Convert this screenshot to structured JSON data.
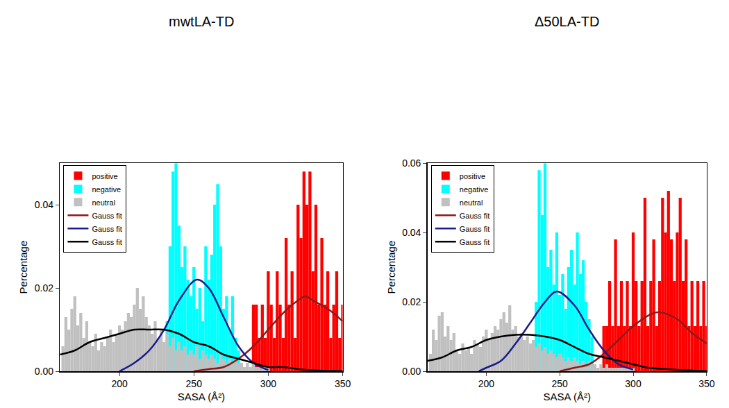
{
  "chart_data": [
    {
      "type": "bar",
      "title": "mwtLA-TD",
      "x_label": "SASA (Å²)",
      "y_label": "Percentage",
      "xlim": [
        160,
        350
      ],
      "xticks": [
        200,
        250,
        300,
        350
      ],
      "ylim": [
        0,
        0.05
      ],
      "yticks": [
        {
          "value": 0,
          "label": "0.00"
        },
        {
          "value": 0.02,
          "label": "0.02"
        },
        {
          "value": 0.04,
          "label": "0.04"
        }
      ],
      "legend": "upper left",
      "series": [
        {
          "name": "positive",
          "color": "#ff0000",
          "type": "bar",
          "x": [
            290,
            292,
            294,
            296,
            298,
            300,
            302,
            304,
            306,
            308,
            310,
            312,
            314,
            316,
            318,
            320,
            322,
            324,
            326,
            328,
            330,
            332,
            334,
            336,
            338,
            340,
            342,
            344,
            346,
            348,
            350
          ],
          "values": [
            0.016,
            0.016,
            0.008,
            0.016,
            0.008,
            0.024,
            0.016,
            0.008,
            0.024,
            0.016,
            0.008,
            0.032,
            0.016,
            0.024,
            0.008,
            0.04,
            0.032,
            0.048,
            0.04,
            0.048,
            0.024,
            0.04,
            0.016,
            0.032,
            0.016,
            0.024,
            0.008,
            0.016,
            0.024,
            0.008,
            0.016
          ]
        },
        {
          "name": "negative",
          "color": "#00ffff",
          "type": "bar",
          "x": [
            232,
            234,
            236,
            238,
            240,
            242,
            244,
            246,
            248,
            250,
            252,
            254,
            256,
            258,
            260,
            262,
            264,
            266,
            268,
            270,
            272,
            274,
            276,
            278,
            280
          ],
          "values": [
            0.012,
            0.03,
            0.048,
            0.05,
            0.035,
            0.025,
            0.03,
            0.022,
            0.018,
            0.025,
            0.015,
            0.02,
            0.012,
            0.03,
            0.022,
            0.028,
            0.04,
            0.045,
            0.03,
            0.015,
            0.018,
            0.01,
            0.018,
            0.008,
            0.005
          ]
        },
        {
          "name": "neutral",
          "color": "#c0c0c0",
          "type": "bar",
          "x": [
            162,
            164,
            166,
            168,
            170,
            172,
            174,
            176,
            178,
            180,
            182,
            184,
            186,
            188,
            190,
            192,
            194,
            196,
            198,
            200,
            202,
            204,
            206,
            208,
            210,
            212,
            214,
            216,
            218,
            220,
            222,
            224,
            226,
            228,
            230,
            232,
            234,
            236,
            238,
            240,
            242,
            244,
            246,
            248,
            250,
            252,
            254,
            256,
            258,
            260,
            262,
            264,
            266,
            268,
            270,
            272,
            274,
            276,
            278,
            280,
            282,
            284,
            286,
            288,
            290,
            292,
            294,
            296,
            298,
            300
          ],
          "values": [
            0.006,
            0.013,
            0.01,
            0.015,
            0.018,
            0.011,
            0.014,
            0.008,
            0.012,
            0.007,
            0.006,
            0.009,
            0.005,
            0.007,
            0.006,
            0.008,
            0.01,
            0.007,
            0.009,
            0.011,
            0.01,
            0.012,
            0.014,
            0.013,
            0.016,
            0.02,
            0.015,
            0.018,
            0.013,
            0.011,
            0.009,
            0.012,
            0.008,
            0.01,
            0.007,
            0.009,
            0.006,
            0.008,
            0.005,
            0.007,
            0.005,
            0.006,
            0.004,
            0.005,
            0.004,
            0.006,
            0.003,
            0.005,
            0.004,
            0.003,
            0.004,
            0.003,
            0.002,
            0.004,
            0.003,
            0.002,
            0.003,
            0.002,
            0.003,
            0.002,
            0.002,
            0.001,
            0.002,
            0.001,
            0.002,
            0.001,
            0.001,
            0.001,
            0.001,
            0.001
          ]
        },
        {
          "name": "Gauss fit",
          "color": "#8b1a1a",
          "type": "line",
          "x": [
            250,
            260,
            270,
            280,
            290,
            300,
            310,
            320,
            325,
            330,
            340,
            350
          ],
          "values": [
            0,
            0.0005,
            0.001,
            0.003,
            0.006,
            0.01,
            0.014,
            0.017,
            0.018,
            0.017,
            0.015,
            0.012
          ]
        },
        {
          "name": "Gauss fit",
          "color": "#1a1a8c",
          "type": "line",
          "x": [
            200,
            210,
            220,
            230,
            240,
            252,
            260,
            270,
            280,
            290,
            300
          ],
          "values": [
            0,
            0.002,
            0.005,
            0.01,
            0.017,
            0.022,
            0.02,
            0.013,
            0.006,
            0.002,
            0.0003
          ]
        },
        {
          "name": "Gauss fit",
          "color": "#000000",
          "type": "line",
          "x": [
            160,
            170,
            180,
            190,
            200,
            210,
            220,
            230,
            240,
            250,
            260,
            270,
            280,
            290,
            300,
            310,
            320,
            330,
            340,
            350
          ],
          "values": [
            0.004,
            0.005,
            0.007,
            0.008,
            0.009,
            0.01,
            0.01,
            0.01,
            0.009,
            0.007,
            0.006,
            0.004,
            0.003,
            0.002,
            0.001,
            0.001,
            0.0005,
            0.0002,
            0.0001,
            0.0001
          ]
        }
      ]
    },
    {
      "type": "bar",
      "title": "Δ50LA-TD",
      "x_label": "SASA (Å²)",
      "y_label": "Percentage",
      "xlim": [
        160,
        350
      ],
      "xticks": [
        200,
        250,
        300,
        350
      ],
      "ylim": [
        0,
        0.06
      ],
      "yticks": [
        {
          "value": 0,
          "label": "0.00"
        },
        {
          "value": 0.02,
          "label": "0.02"
        },
        {
          "value": 0.04,
          "label": "0.04"
        },
        {
          "value": 0.06,
          "label": "0.06"
        }
      ],
      "legend": "upper left",
      "series": [
        {
          "name": "positive",
          "color": "#ff0000",
          "type": "bar",
          "x": [
            280,
            282,
            284,
            286,
            288,
            290,
            292,
            294,
            296,
            298,
            300,
            302,
            304,
            306,
            308,
            310,
            312,
            314,
            316,
            318,
            320,
            322,
            324,
            326,
            328,
            330,
            332,
            334,
            336,
            338,
            340,
            342,
            344,
            346,
            348,
            350
          ],
          "values": [
            0.013,
            0.013,
            0.026,
            0.013,
            0.038,
            0.013,
            0.026,
            0.013,
            0.026,
            0.013,
            0.04,
            0.026,
            0.013,
            0.026,
            0.05,
            0.013,
            0.026,
            0.038,
            0.013,
            0.026,
            0.05,
            0.04,
            0.052,
            0.038,
            0.026,
            0.04,
            0.05,
            0.026,
            0.038,
            0.013,
            0.026,
            0.013,
            0.026,
            0.013,
            0.026,
            0.013
          ]
        },
        {
          "name": "negative",
          "color": "#00ffff",
          "type": "bar",
          "x": [
            234,
            236,
            238,
            240,
            242,
            244,
            246,
            248,
            250,
            252,
            254,
            256,
            258,
            260,
            262,
            264,
            266,
            268,
            270,
            272
          ],
          "values": [
            0.02,
            0.058,
            0.045,
            0.06,
            0.03,
            0.035,
            0.025,
            0.04,
            0.022,
            0.028,
            0.018,
            0.03,
            0.035,
            0.025,
            0.04,
            0.028,
            0.032,
            0.02,
            0.015,
            0.01
          ]
        },
        {
          "name": "neutral",
          "color": "#c0c0c0",
          "type": "bar",
          "x": [
            162,
            164,
            166,
            168,
            170,
            172,
            174,
            176,
            178,
            180,
            182,
            184,
            186,
            188,
            190,
            192,
            194,
            196,
            198,
            200,
            202,
            204,
            206,
            208,
            210,
            212,
            214,
            216,
            218,
            220,
            222,
            224,
            226,
            228,
            230,
            232,
            234,
            236,
            238,
            240,
            242,
            244,
            246,
            248,
            250,
            252,
            254,
            256,
            258,
            260,
            262,
            264,
            266,
            268,
            270,
            272,
            274,
            276,
            278,
            280,
            282,
            284,
            286,
            288,
            290,
            292,
            294,
            296,
            298,
            300
          ],
          "values": [
            0.005,
            0.012,
            0.009,
            0.016,
            0.017,
            0.01,
            0.013,
            0.009,
            0.011,
            0.006,
            0.005,
            0.008,
            0.006,
            0.007,
            0.005,
            0.009,
            0.008,
            0.007,
            0.01,
            0.012,
            0.009,
            0.011,
            0.013,
            0.012,
            0.015,
            0.017,
            0.014,
            0.019,
            0.012,
            0.013,
            0.01,
            0.011,
            0.009,
            0.01,
            0.008,
            0.009,
            0.007,
            0.008,
            0.006,
            0.007,
            0.005,
            0.006,
            0.005,
            0.004,
            0.005,
            0.004,
            0.003,
            0.004,
            0.003,
            0.004,
            0.003,
            0.002,
            0.003,
            0.002,
            0.003,
            0.002,
            0.002,
            0.001,
            0.002,
            0.001,
            0.002,
            0.001,
            0.001,
            0.001,
            0.001,
            0.001,
            0.001,
            0.001,
            0.001,
            0.001
          ]
        },
        {
          "name": "Gauss fit",
          "color": "#8b1a1a",
          "type": "line",
          "x": [
            250,
            260,
            270,
            280,
            290,
            300,
            310,
            317,
            330,
            340,
            350
          ],
          "values": [
            0,
            0.001,
            0.002,
            0.005,
            0.009,
            0.013,
            0.016,
            0.017,
            0.015,
            0.011,
            0.008
          ]
        },
        {
          "name": "Gauss fit",
          "color": "#1a1a8c",
          "type": "line",
          "x": [
            195,
            200,
            210,
            220,
            230,
            240,
            248,
            260,
            270,
            280,
            290,
            300
          ],
          "values": [
            0,
            0.001,
            0.003,
            0.008,
            0.014,
            0.02,
            0.023,
            0.019,
            0.012,
            0.006,
            0.002,
            0.0005
          ]
        },
        {
          "name": "Gauss fit",
          "color": "#000000",
          "type": "line",
          "x": [
            160,
            170,
            180,
            190,
            200,
            210,
            220,
            230,
            240,
            250,
            260,
            270,
            280,
            290,
            300,
            310,
            320,
            330,
            340,
            350
          ],
          "values": [
            0.003,
            0.004,
            0.006,
            0.007,
            0.009,
            0.01,
            0.0105,
            0.0105,
            0.01,
            0.009,
            0.007,
            0.005,
            0.004,
            0.003,
            0.002,
            0.001,
            0.0007,
            0.0004,
            0.0002,
            0.0001
          ]
        }
      ]
    }
  ]
}
